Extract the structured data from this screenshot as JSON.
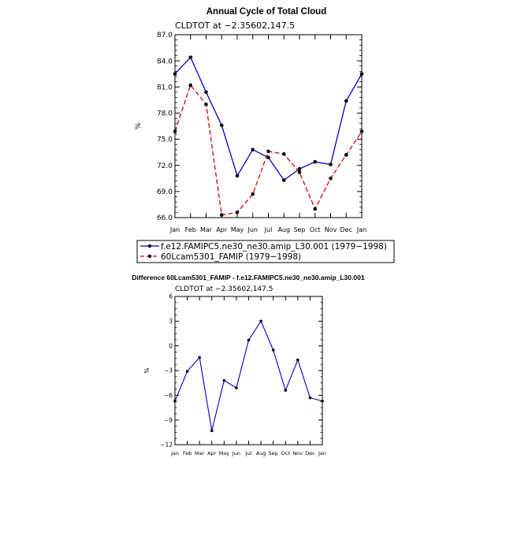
{
  "chart_data": [
    {
      "type": "line",
      "title": "Annual Cycle of Total Cloud",
      "subtitle": "CLDTOT at −2.35602,147.5",
      "ylabel": "%",
      "xlabel": "",
      "categories": [
        "Jan",
        "Feb",
        "Mar",
        "Apr",
        "May",
        "Jun",
        "Jul",
        "Aug",
        "Sep",
        "Oct",
        "Nov",
        "Dec",
        "Jan"
      ],
      "ylim": [
        66.0,
        87.0
      ],
      "yticks": [
        "66.0",
        "69.0",
        "72.0",
        "75.0",
        "78.0",
        "81.0",
        "84.0",
        "87.0"
      ],
      "legend_position": "bottom",
      "series": [
        {
          "name": "f.e12.FAMIPC5.ne30_ne30.amip_L30.001 (1979−1998)",
          "color": "#0000cc",
          "dash": "solid",
          "values": [
            82.5,
            84.4,
            80.4,
            76.6,
            70.8,
            73.8,
            72.9,
            70.3,
            71.6,
            72.4,
            72.1,
            79.4,
            82.5
          ]
        },
        {
          "name": "60Lcam5301_FAMIP (1979−1998)",
          "color": "#dd0000",
          "dash": "dashed",
          "values": [
            75.9,
            81.2,
            79.0,
            66.3,
            66.6,
            68.7,
            73.6,
            73.3,
            71.2,
            67.0,
            70.5,
            73.2,
            75.9
          ]
        }
      ]
    },
    {
      "type": "line",
      "title": "Difference 60Lcam5301_FAMIP - f.e12.FAMIPC5.ne30_ne30.amip_L30.001",
      "subtitle": "CLDTOT at −2.35602,147.5",
      "ylabel": "%",
      "xlabel": "",
      "categories": [
        "Jan",
        "Feb",
        "Mar",
        "Apr",
        "May",
        "Jun",
        "Jul",
        "Aug",
        "Sep",
        "Oct",
        "Nov",
        "Dec",
        "Jan"
      ],
      "ylim": [
        -12,
        6
      ],
      "yticks": [
        "−12",
        "−9",
        "−6",
        "−3",
        "0",
        "3",
        "6"
      ],
      "series": [
        {
          "color": "#0000cc",
          "dash": "solid",
          "values": [
            -6.7,
            -3.1,
            -1.4,
            -10.3,
            -4.2,
            -5.1,
            0.7,
            3.0,
            -0.5,
            -5.4,
            -1.7,
            -6.3,
            -6.7
          ]
        }
      ]
    }
  ]
}
